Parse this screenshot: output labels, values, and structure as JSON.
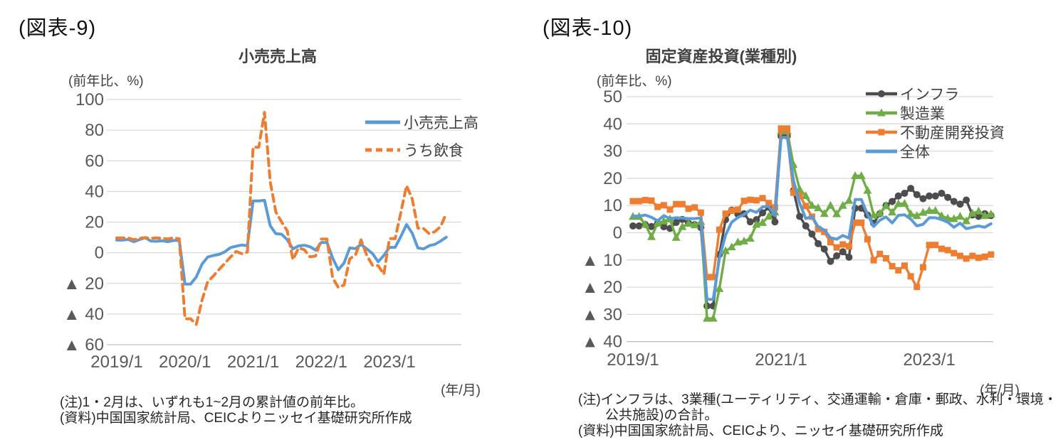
{
  "figure9": {
    "heading": "(図表-9)",
    "title": "小売売上高",
    "unit_label": "(前年比、%)",
    "year_month_label": "(年/月)",
    "notes": [
      "(注)1・2月は、いずれも1~2月の累計値の前年比。",
      "(資料)中国国家統計局、CEICよりニッセイ基礎研究所作成"
    ]
  },
  "figure10": {
    "heading": "(図表-10)",
    "title": "固定資産投資(業種別)",
    "unit_label": "(前年比、%)",
    "year_month_label": "(年/月)",
    "notes": [
      "(注)インフラは、3業種(ユーティリティ、交通運輸・倉庫・郵政、水利・環境・",
      "公共施設)の合計。",
      "(資料)中国国家統計局、CEICより、ニッセイ基礎研究所作成"
    ]
  },
  "colors": {
    "blue": "#5B9BD5",
    "orange": "#ED7D31",
    "green": "#70AD47",
    "dark_gray": "#4d4d4d",
    "grid": "#d9d9d9",
    "grid_bottom": "#bfbfbf",
    "tick_text": "#595959",
    "label_text": "#404040"
  },
  "chart_data": [
    {
      "id": "figure9",
      "type": "line",
      "title": "小売売上高",
      "ylabel": "(前年比、%)",
      "xlabel": "(年/月)",
      "x_start": "2019/1",
      "x_end": "2023/11",
      "x_frequency": "monthly",
      "xticks": [
        "2019/1",
        "2020/1",
        "2021/1",
        "2022/1",
        "2023/1"
      ],
      "xtick_month_index": [
        0,
        12,
        24,
        36,
        48
      ],
      "ylim": [
        -60,
        100
      ],
      "yticks": [
        100,
        80,
        60,
        40,
        20,
        0,
        -20,
        -40,
        -60
      ],
      "grid": true,
      "legend_position": "top-right-inside",
      "series": [
        {
          "name": "小売売上高",
          "key": "retail-sales",
          "color": "#5B9BD5",
          "line": "solid",
          "marker": "none",
          "width": 4,
          "values": [
            8.2,
            8.2,
            8.7,
            7.2,
            8.6,
            9.8,
            7.6,
            7.5,
            7.8,
            7.2,
            8,
            8,
            -20.5,
            -20.5,
            -15.8,
            -7.5,
            -2.8,
            -1.8,
            -1.1,
            0.5,
            3.3,
            4.3,
            5,
            4.6,
            33.8,
            33.8,
            34.2,
            17.7,
            12.4,
            12.1,
            8.5,
            2.5,
            4.4,
            4.9,
            3.9,
            1.7,
            6.7,
            6.7,
            -3.5,
            -11.1,
            -6.7,
            3.1,
            2.7,
            5.4,
            2.5,
            -0.5,
            -5.9,
            -1.8,
            3.5,
            3.5,
            10.6,
            18.4,
            12.7,
            3.1,
            2.5,
            4.6,
            5.5,
            7.6,
            10.1
          ]
        },
        {
          "name": "うち飲食",
          "key": "catering",
          "color": "#ED7D31",
          "line": "dashed",
          "marker": "none",
          "width": 4,
          "values": [
            9.7,
            9.7,
            9.6,
            8.5,
            9.4,
            9.9,
            9.4,
            9.7,
            9.4,
            9,
            9.7,
            9.1,
            -43.1,
            -43.1,
            -46.8,
            -31.1,
            -18.9,
            -15.2,
            -11,
            -7,
            -2.9,
            0.8,
            -0.6,
            0.4,
            68.9,
            68.9,
            91.6,
            46.4,
            26.6,
            20.2,
            14.3,
            -4.5,
            3.1,
            2,
            -2.7,
            -2.2,
            8.9,
            8.9,
            -16.4,
            -22.7,
            -21.1,
            -4,
            -1.5,
            8.4,
            -1.7,
            -8.1,
            -8.4,
            -14.1,
            9.2,
            9.2,
            26.3,
            43.8,
            35.1,
            16.1,
            15.8,
            12.4,
            13.8,
            17.1,
            25.8
          ]
        }
      ]
    },
    {
      "id": "figure10",
      "type": "line",
      "title": "固定資産投資(業種別)",
      "ylabel": "(前年比、%)",
      "xlabel": "(年/月)",
      "x_start": "2019/1",
      "x_end": "2023/11",
      "x_frequency": "monthly",
      "xticks": [
        "2019/1",
        "2021/1",
        "2023/1"
      ],
      "xtick_month_index": [
        0,
        24,
        48
      ],
      "ylim": [
        -40,
        50
      ],
      "yticks": [
        50,
        40,
        30,
        20,
        10,
        0,
        -10,
        -20,
        -30,
        -40
      ],
      "grid": true,
      "legend_position": "top-right-inside",
      "series": [
        {
          "name": "インフラ",
          "key": "infrastructure",
          "color": "#4d4d4d",
          "line": "solid",
          "marker": "circle",
          "width": 3.4,
          "values": [
            2.5,
            2.5,
            3,
            2.3,
            3.5,
            2.2,
            1.6,
            3.8,
            4.9,
            3.5,
            3,
            1.9,
            -26.9,
            -26.9,
            -8,
            4.8,
            8.3,
            6.8,
            7,
            4,
            4.8,
            7.3,
            9.4,
            4,
            35.5,
            35.5,
            15.5,
            6,
            2.5,
            -0.5,
            -4,
            -6,
            -10.5,
            -8.5,
            -7,
            -9,
            9,
            9,
            6.5,
            3.5,
            7,
            10,
            11.5,
            13.5,
            14.5,
            16.3,
            14,
            12.5,
            13.5,
            13.5,
            14.5,
            13,
            11.5,
            10.5,
            12,
            6.5,
            6,
            7,
            6.3
          ]
        },
        {
          "name": "製造業",
          "key": "manufacturing",
          "color": "#70AD47",
          "line": "solid",
          "marker": "triangle",
          "width": 3.4,
          "values": [
            5.9,
            5.9,
            3,
            -1.5,
            3.5,
            4.2,
            5,
            -1.8,
            2.2,
            3.4,
            2.8,
            4,
            -31.5,
            -31.5,
            -20.6,
            -6.7,
            -5.3,
            -3.5,
            -3.1,
            -2.1,
            3,
            3.7,
            6,
            7.5,
            37.3,
            37.3,
            25,
            16,
            13.5,
            10,
            9.1,
            7,
            10,
            6.9,
            10,
            11.8,
            20.9,
            20.9,
            15.5,
            6.4,
            7.1,
            9.9,
            7.5,
            10.6,
            10.7,
            6.9,
            6.2,
            7.4,
            8.1,
            8.1,
            6.2,
            5.3,
            5.1,
            6,
            4.3,
            7.1,
            7.9,
            6.2,
            6.8
          ]
        },
        {
          "name": "不動産開発投資",
          "key": "real-estate-development",
          "color": "#ED7D31",
          "line": "solid",
          "marker": "square",
          "width": 3.4,
          "values": [
            11.6,
            11.6,
            12,
            11.8,
            9.5,
            10.1,
            8.5,
            10.5,
            10.5,
            8.8,
            9.3,
            7.4,
            -16.3,
            -16.3,
            1.1,
            7,
            8.1,
            8.5,
            11.7,
            12.1,
            11.9,
            12.7,
            10.9,
            9.3,
            38.3,
            38.3,
            14.7,
            13.7,
            9.8,
            5.9,
            1.4,
            0.3,
            -3.5,
            -5.4,
            -4.3,
            -5,
            3.7,
            3.7,
            -2.4,
            -10.1,
            -7.8,
            -9.4,
            -12.3,
            -13.8,
            -12.1,
            -16,
            -19.9,
            -12.7,
            -4.5,
            -4.5,
            -5.9,
            -6.4,
            -7.5,
            -8.5,
            -9.5,
            -8.5,
            -9.2,
            -8.8,
            -8
          ]
        },
        {
          "name": "全体",
          "key": "total",
          "color": "#5B9BD5",
          "line": "solid",
          "marker": "none",
          "width": 4,
          "values": [
            6.1,
            6.1,
            6.5,
            5.7,
            4.4,
            6.3,
            5.2,
            5.5,
            5.4,
            5.2,
            5.2,
            5.4,
            -24.5,
            -24.5,
            -9.4,
            -0.8,
            3.9,
            5.6,
            6.7,
            8.3,
            7.5,
            9.5,
            9.7,
            6.3,
            35,
            35,
            19.3,
            10.9,
            5.2,
            6,
            2.2,
            1,
            -1.8,
            -2.4,
            -1,
            -2,
            12.2,
            12.2,
            6.7,
            2.3,
            4.6,
            5.8,
            3.6,
            6.4,
            6.6,
            5,
            2.5,
            3.1,
            5.5,
            5.5,
            4.8,
            3.9,
            2,
            3.5,
            1.5,
            2,
            2.5,
            2,
            3.3
          ]
        }
      ]
    }
  ]
}
